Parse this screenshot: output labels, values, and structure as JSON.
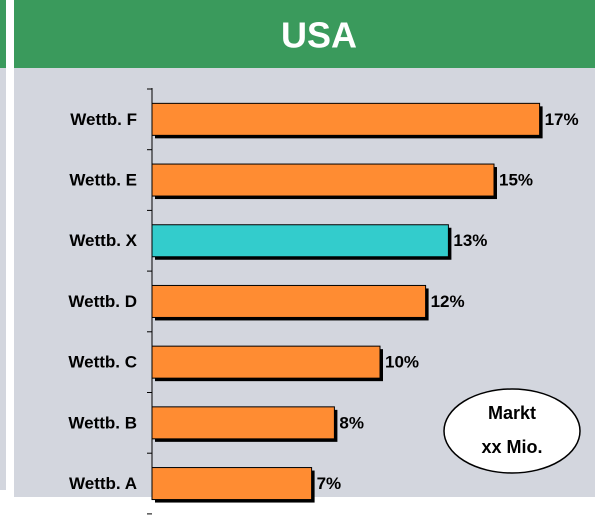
{
  "chart_data": {
    "type": "bar",
    "orientation": "horizontal",
    "title": "USA",
    "categories": [
      "Wettb. F",
      "Wettb. E",
      "Wettb. X",
      "Wettb. D",
      "Wettb. C",
      "Wettb. B",
      "Wettb. A"
    ],
    "values": [
      17,
      15,
      13,
      12,
      10,
      8,
      7
    ],
    "value_labels": [
      "17%",
      "15%",
      "13%",
      "12%",
      "10%",
      "8%",
      "7%"
    ],
    "colors": [
      "#ff8c32",
      "#ff8c32",
      "#33cccc",
      "#ff8c32",
      "#ff8c32",
      "#ff8c32",
      "#ff8c32"
    ],
    "annotation": [
      "Markt",
      "xx Mio."
    ]
  }
}
